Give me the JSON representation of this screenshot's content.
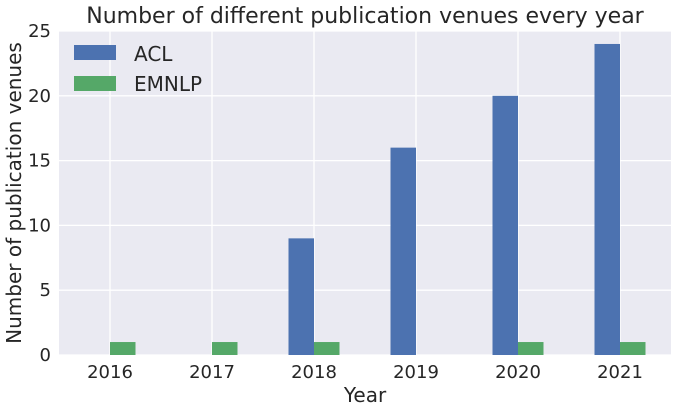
{
  "chart_data": {
    "type": "bar",
    "title": "Number of different publication venues every year",
    "xlabel": "Year",
    "ylabel": "Number of publication venues",
    "categories": [
      "2016",
      "2017",
      "2018",
      "2019",
      "2020",
      "2021"
    ],
    "series": [
      {
        "name": "ACL",
        "values": [
          0,
          0,
          9,
          16,
          20,
          24
        ],
        "color": "#4c72b0"
      },
      {
        "name": "EMNLP",
        "values": [
          1,
          1,
          1,
          0,
          1,
          1
        ],
        "color": "#55a868"
      }
    ],
    "ylim": [
      0,
      25
    ],
    "yticks": [
      "0",
      "5",
      "10",
      "15",
      "20",
      "25"
    ],
    "grid": true,
    "legend_position": "top-left",
    "background": "#eaeaf2"
  }
}
